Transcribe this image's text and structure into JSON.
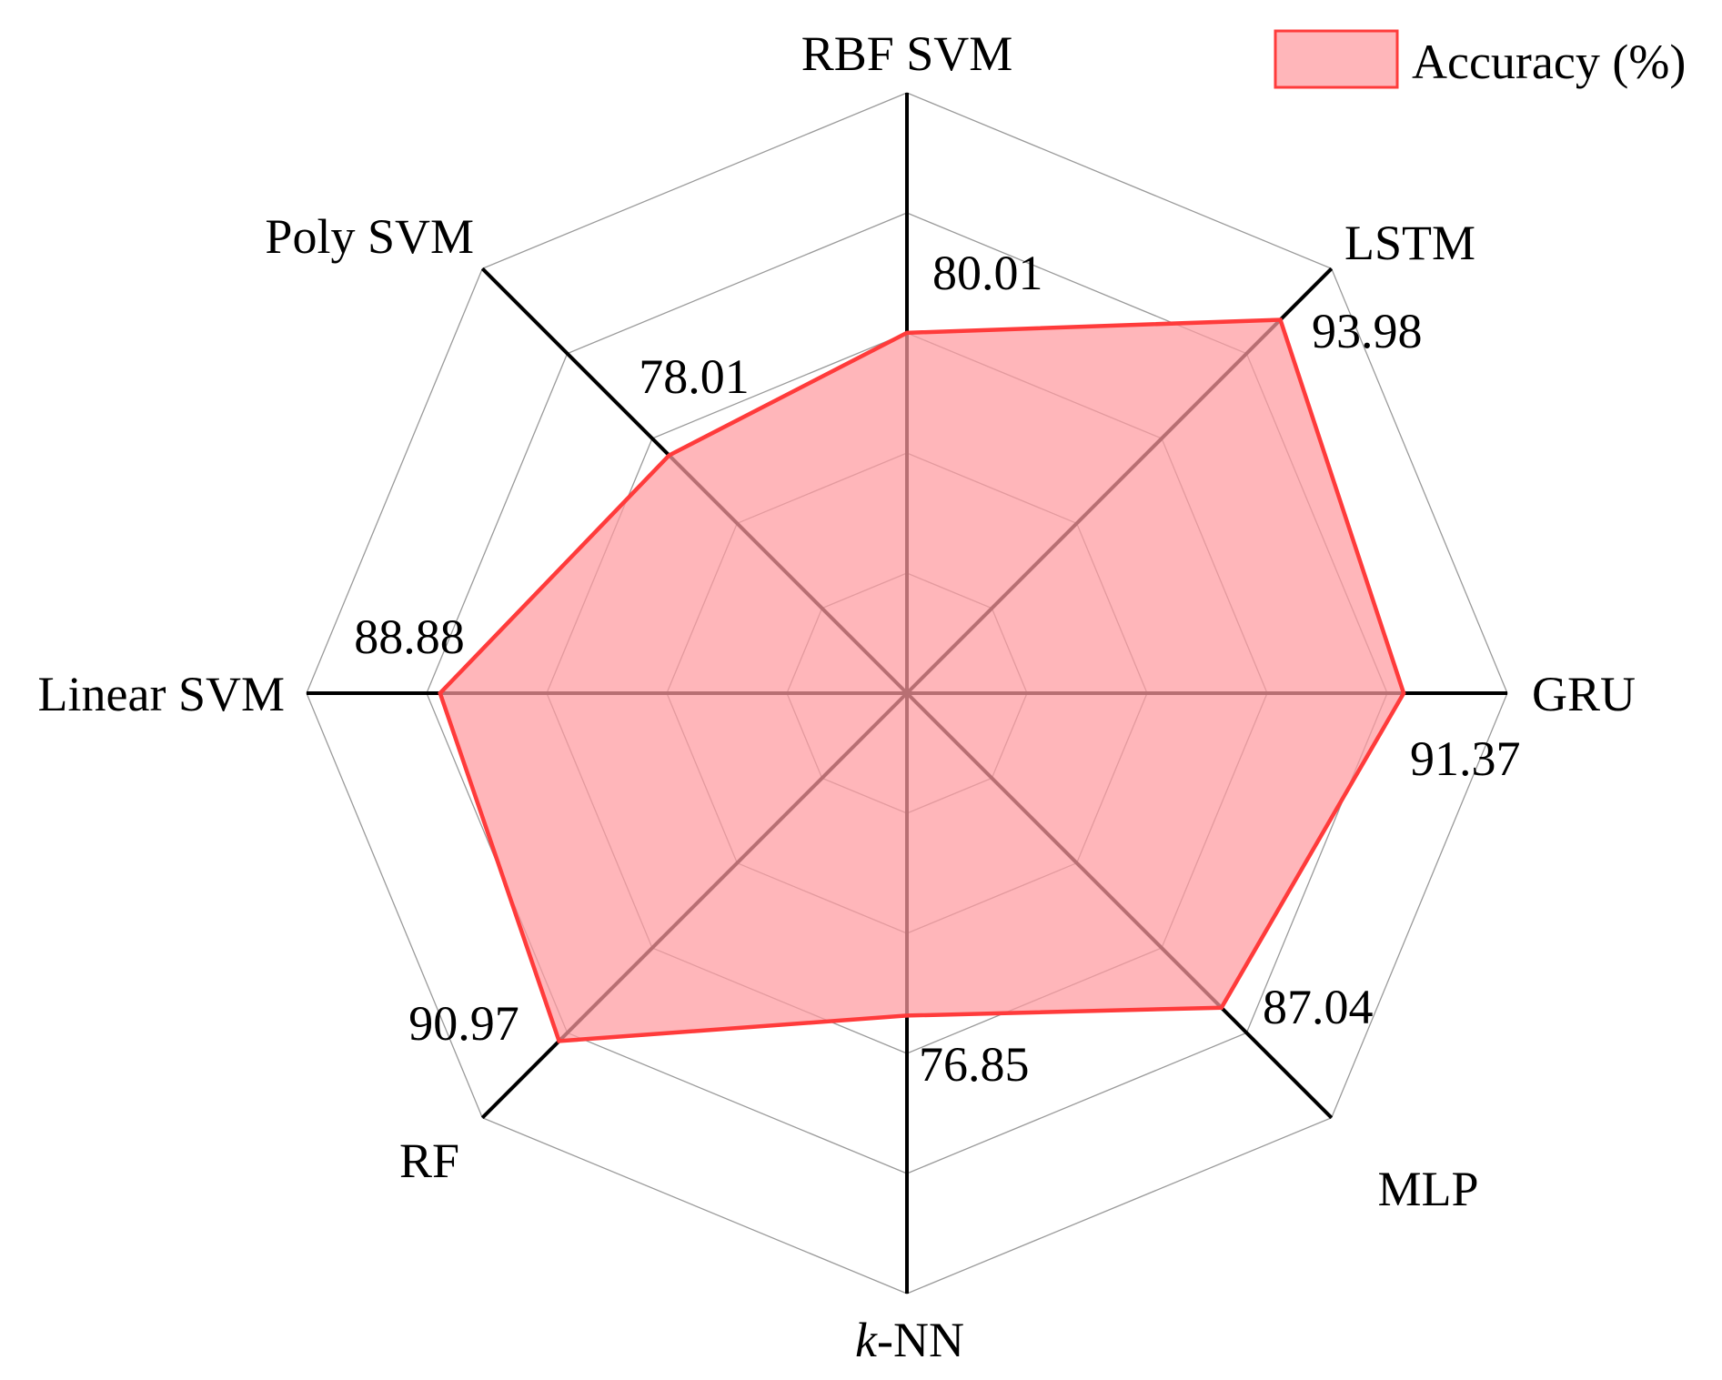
{
  "chart_data": {
    "type": "radar",
    "categories": [
      "RBF SVM",
      "LSTM",
      "GRU",
      "MLP",
      "k-NN",
      "RF",
      "Linear SVM",
      "Poly SVM"
    ],
    "series": [
      {
        "name": "Accuracy (%)",
        "values": [
          80.01,
          93.98,
          91.37,
          87.04,
          76.85,
          90.97,
          88.88,
          78.01
        ]
      }
    ],
    "value_labels": [
      "80.01",
      "93.98",
      "91.37",
      "87.04",
      "76.85",
      "90.97",
      "88.88",
      "78.01"
    ],
    "highlight_index": 1,
    "rlim": [
      50,
      100
    ],
    "grid_rings": 5,
    "grid": true,
    "legend_position": "top-right",
    "colors": {
      "fill": "#ff9aa0",
      "line": "#ff3b3b",
      "highlight_label": "#ff4d4d",
      "grid": "#9a9a9a",
      "axis": "#000000"
    }
  }
}
